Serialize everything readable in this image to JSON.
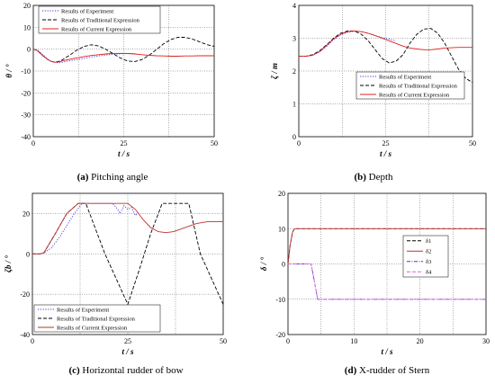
{
  "chart_data": [
    {
      "type": "line",
      "caption_tag": "(a)",
      "caption_text": "Pitching angle",
      "xlabel": "t / s",
      "ylabel": "θ / °",
      "xlim": [
        0,
        50
      ],
      "ylim": [
        -40,
        20
      ],
      "xticks": [
        "0",
        "25",
        "50"
      ],
      "yticks": [
        "20",
        "10",
        "0",
        "-10",
        "-20",
        "-30",
        "-40"
      ],
      "grid": true,
      "legend_position": "top-left",
      "series": [
        {
          "name": "Results of Experiment",
          "color": "#3b3bd6",
          "dash": "dot",
          "x": [
            0,
            1,
            2,
            3,
            4,
            5,
            6,
            7,
            8,
            9,
            10,
            12,
            14,
            16,
            18,
            20,
            22,
            24,
            26,
            28
          ],
          "y": [
            0,
            -0.3,
            -1.5,
            -3,
            -4.6,
            -5.6,
            -6,
            -6.2,
            -6,
            -5.6,
            -5.3,
            -4.8,
            -4.2,
            -3.6,
            -3.1,
            -2.7,
            -2.3,
            -2.1,
            -2,
            -2
          ]
        },
        {
          "name": "Results of Traditional Expression",
          "color": "#000000",
          "dash": "dash",
          "x": [
            0,
            1,
            2,
            3,
            4,
            5,
            6,
            7,
            8,
            9,
            10,
            12,
            14,
            16,
            18,
            20,
            22,
            24,
            26,
            28,
            30,
            32,
            34,
            36,
            38,
            40,
            42,
            44,
            46,
            48,
            50
          ],
          "y": [
            0,
            -0.5,
            -2,
            -3.5,
            -4.8,
            -5.6,
            -5.9,
            -5.6,
            -4.9,
            -3.8,
            -2.8,
            -0.5,
            1.2,
            2,
            1.5,
            0,
            -2,
            -4,
            -5.4,
            -5.7,
            -4.8,
            -2.8,
            -0.2,
            2.4,
            4.4,
            5.4,
            5.4,
            4.6,
            3.3,
            2.1,
            1.3
          ]
        },
        {
          "name": "Results of Current Expression",
          "color": "#e02020",
          "dash": "solid",
          "x": [
            0,
            1,
            2,
            3,
            4,
            5,
            6,
            7,
            8,
            9,
            10,
            12,
            14,
            16,
            18,
            20,
            22,
            24,
            26,
            28,
            30,
            32,
            34,
            36,
            38,
            40,
            42,
            44,
            46,
            48,
            50
          ],
          "y": [
            0,
            -0.5,
            -2,
            -3.5,
            -4.8,
            -5.6,
            -6,
            -5.8,
            -5.4,
            -5,
            -4.6,
            -4,
            -3.4,
            -2.9,
            -2.5,
            -2.2,
            -2,
            -1.9,
            -2,
            -2.2,
            -2.5,
            -2.8,
            -3,
            -3.1,
            -3.2,
            -3.2,
            -3.1,
            -3.1,
            -3,
            -3,
            -3
          ]
        }
      ]
    },
    {
      "type": "line",
      "caption_tag": "(b)",
      "caption_text": "Depth",
      "xlabel": "t / s",
      "ylabel": "ζ / m",
      "xlim": [
        0,
        50
      ],
      "ylim": [
        0,
        4
      ],
      "xticks": [
        "0",
        "25",
        "50"
      ],
      "yticks": [
        "4",
        "3",
        "2",
        "1",
        "0"
      ],
      "grid": true,
      "legend_position": "bottom-center",
      "series": [
        {
          "name": "Results of Experiment",
          "color": "#3b3bd6",
          "dash": "dot",
          "x": [
            0,
            2,
            4,
            6,
            8,
            10,
            12,
            14,
            16,
            18,
            20,
            22,
            24,
            26,
            28
          ],
          "y": [
            2.45,
            2.45,
            2.48,
            2.58,
            2.75,
            2.95,
            3.1,
            3.18,
            3.22,
            3.2,
            3.15,
            3.08,
            3.02,
            2.97,
            2.92
          ]
        },
        {
          "name": "Results of Traditional Expression",
          "color": "#000000",
          "dash": "dash",
          "x": [
            0,
            2,
            4,
            6,
            8,
            10,
            12,
            14,
            16,
            18,
            20,
            22,
            24,
            26,
            28,
            30,
            32,
            34,
            36,
            38,
            40,
            42,
            44,
            46,
            48,
            50
          ],
          "y": [
            2.45,
            2.45,
            2.5,
            2.62,
            2.8,
            3,
            3.15,
            3.22,
            3.22,
            3.12,
            2.92,
            2.65,
            2.38,
            2.25,
            2.3,
            2.5,
            2.85,
            3.12,
            3.28,
            3.3,
            3.15,
            2.85,
            2.45,
            2.05,
            1.78,
            1.65
          ]
        },
        {
          "name": "Results of Current Expression",
          "color": "#e02020",
          "dash": "solid",
          "x": [
            0,
            2,
            4,
            6,
            8,
            10,
            12,
            14,
            16,
            18,
            20,
            22,
            24,
            26,
            28,
            30,
            32,
            34,
            36,
            38,
            40,
            42,
            44,
            46,
            48,
            50
          ],
          "y": [
            2.45,
            2.45,
            2.48,
            2.6,
            2.78,
            2.98,
            3.12,
            3.2,
            3.22,
            3.2,
            3.15,
            3.08,
            3,
            2.92,
            2.84,
            2.76,
            2.7,
            2.67,
            2.65,
            2.65,
            2.67,
            2.7,
            2.71,
            2.72,
            2.72,
            2.72
          ]
        }
      ]
    },
    {
      "type": "line",
      "caption_tag": "(c)",
      "caption_text": "Horizontal rudder of bow",
      "xlabel": "t / s",
      "ylabel": "ζb / °",
      "xlim": [
        0,
        50
      ],
      "ylim": [
        -40,
        30
      ],
      "xticks": [
        "0",
        "25",
        "50"
      ],
      "yticks": [
        "20",
        "0",
        "-20",
        "-40"
      ],
      "grid": true,
      "legend_position": "bottom-left",
      "series": [
        {
          "name": "Results of Experiment",
          "color": "#3b3bd6",
          "dash": "dot",
          "x": [
            0,
            2,
            3,
            5,
            7,
            9,
            11,
            13,
            15,
            17,
            19,
            21,
            22,
            23,
            24,
            25,
            26,
            27,
            28
          ],
          "y": [
            0,
            0,
            0.5,
            3,
            8,
            14,
            20,
            25,
            25,
            25,
            25,
            25,
            23,
            20,
            24,
            22,
            23,
            19,
            21
          ]
        },
        {
          "name": "Results of Traditional Expression",
          "color": "#000000",
          "dash": "dash",
          "x": [
            0,
            2,
            3,
            6,
            9,
            12,
            14,
            19,
            25,
            28,
            31,
            34,
            38,
            41,
            44,
            50
          ],
          "y": [
            0,
            0,
            0.5,
            10,
            20,
            25,
            25,
            0,
            -25,
            -8,
            10,
            25,
            25,
            25,
            0,
            -25
          ]
        },
        {
          "name": "Results of Current Expression",
          "color": "#c03030",
          "dash": "solid",
          "x": [
            0,
            2,
            3,
            6,
            9,
            12,
            14,
            17,
            20,
            23,
            25,
            27,
            29,
            31,
            33,
            35,
            37,
            40,
            43,
            46,
            48,
            50
          ],
          "y": [
            0,
            0,
            0.5,
            10,
            20,
            25,
            25,
            25,
            25,
            25,
            25,
            22,
            17,
            13,
            11,
            10.5,
            11,
            13,
            15,
            16,
            16,
            16
          ]
        }
      ]
    },
    {
      "type": "line",
      "caption_tag": "(d)",
      "caption_text": "X-rudder of Stern",
      "xlabel": "t / s",
      "ylabel": "δ / °",
      "xlim": [
        0,
        30
      ],
      "ylim": [
        -20,
        20
      ],
      "xticks": [
        "0",
        "10",
        "20",
        "30"
      ],
      "yticks": [
        "20",
        "10",
        "0",
        "-10",
        "-20"
      ],
      "grid": true,
      "legend_position": "right-center",
      "series": [
        {
          "name": "δ1",
          "color": "#000000",
          "dash": "dash",
          "x": [
            0,
            0.3,
            0.7,
            1,
            30
          ],
          "y": [
            0,
            5,
            9,
            10,
            10
          ]
        },
        {
          "name": "δ2",
          "color": "#c03030",
          "dash": "solid",
          "x": [
            0,
            0.3,
            0.7,
            1,
            30
          ],
          "y": [
            0,
            5,
            9,
            10,
            10
          ]
        },
        {
          "name": "δ3",
          "color": "#3b3bd6",
          "dash": "dashdot",
          "x": [
            0,
            3.5,
            4.5,
            30
          ],
          "y": [
            0,
            0,
            -10,
            -10
          ]
        },
        {
          "name": "δ4",
          "color": "#e060d0",
          "dash": "dash",
          "x": [
            0,
            3.5,
            4.5,
            30
          ],
          "y": [
            0,
            0,
            -10,
            -10
          ]
        }
      ]
    }
  ]
}
